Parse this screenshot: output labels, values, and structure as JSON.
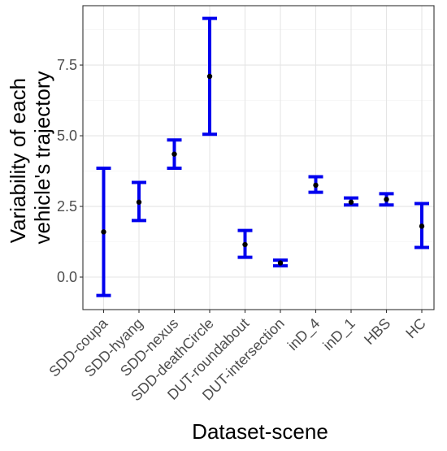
{
  "chart_data": {
    "type": "errorbar",
    "title": "",
    "xlabel": "Dataset-scene",
    "ylabel_lines": [
      "Variability of each",
      "vehicle's trajectory"
    ],
    "categories": [
      "SDD-coupa",
      "SDD-hyang",
      "SDD-nexus",
      "SDD-deathCircle",
      "DUT-roundabout",
      "DUT-intersection",
      "inD_4",
      "inD_1",
      "HBS",
      "HC"
    ],
    "mean": [
      1.6,
      2.65,
      4.35,
      7.1,
      1.15,
      0.5,
      3.25,
      2.65,
      2.75,
      1.8
    ],
    "lower": [
      -0.65,
      2.0,
      3.85,
      5.05,
      0.7,
      0.4,
      3.0,
      2.55,
      2.55,
      1.05
    ],
    "upper": [
      3.85,
      3.35,
      4.85,
      9.15,
      1.65,
      0.6,
      3.55,
      2.8,
      2.95,
      2.6
    ],
    "ylim": [
      -1.15,
      9.6
    ],
    "y_ticks": [
      0.0,
      2.5,
      5.0,
      7.5
    ],
    "y_tick_labels": [
      "0.0",
      "2.5",
      "5.0",
      "7.5"
    ],
    "grid": true,
    "colors": {
      "errorbar": "#0000ee",
      "point": "#000000",
      "grid_major": "#e5e5e5",
      "grid_minor": "#f2f2f2",
      "panel_border": "#333333",
      "tick_text": "#4d4d4d",
      "axis_title": "#000000"
    }
  }
}
